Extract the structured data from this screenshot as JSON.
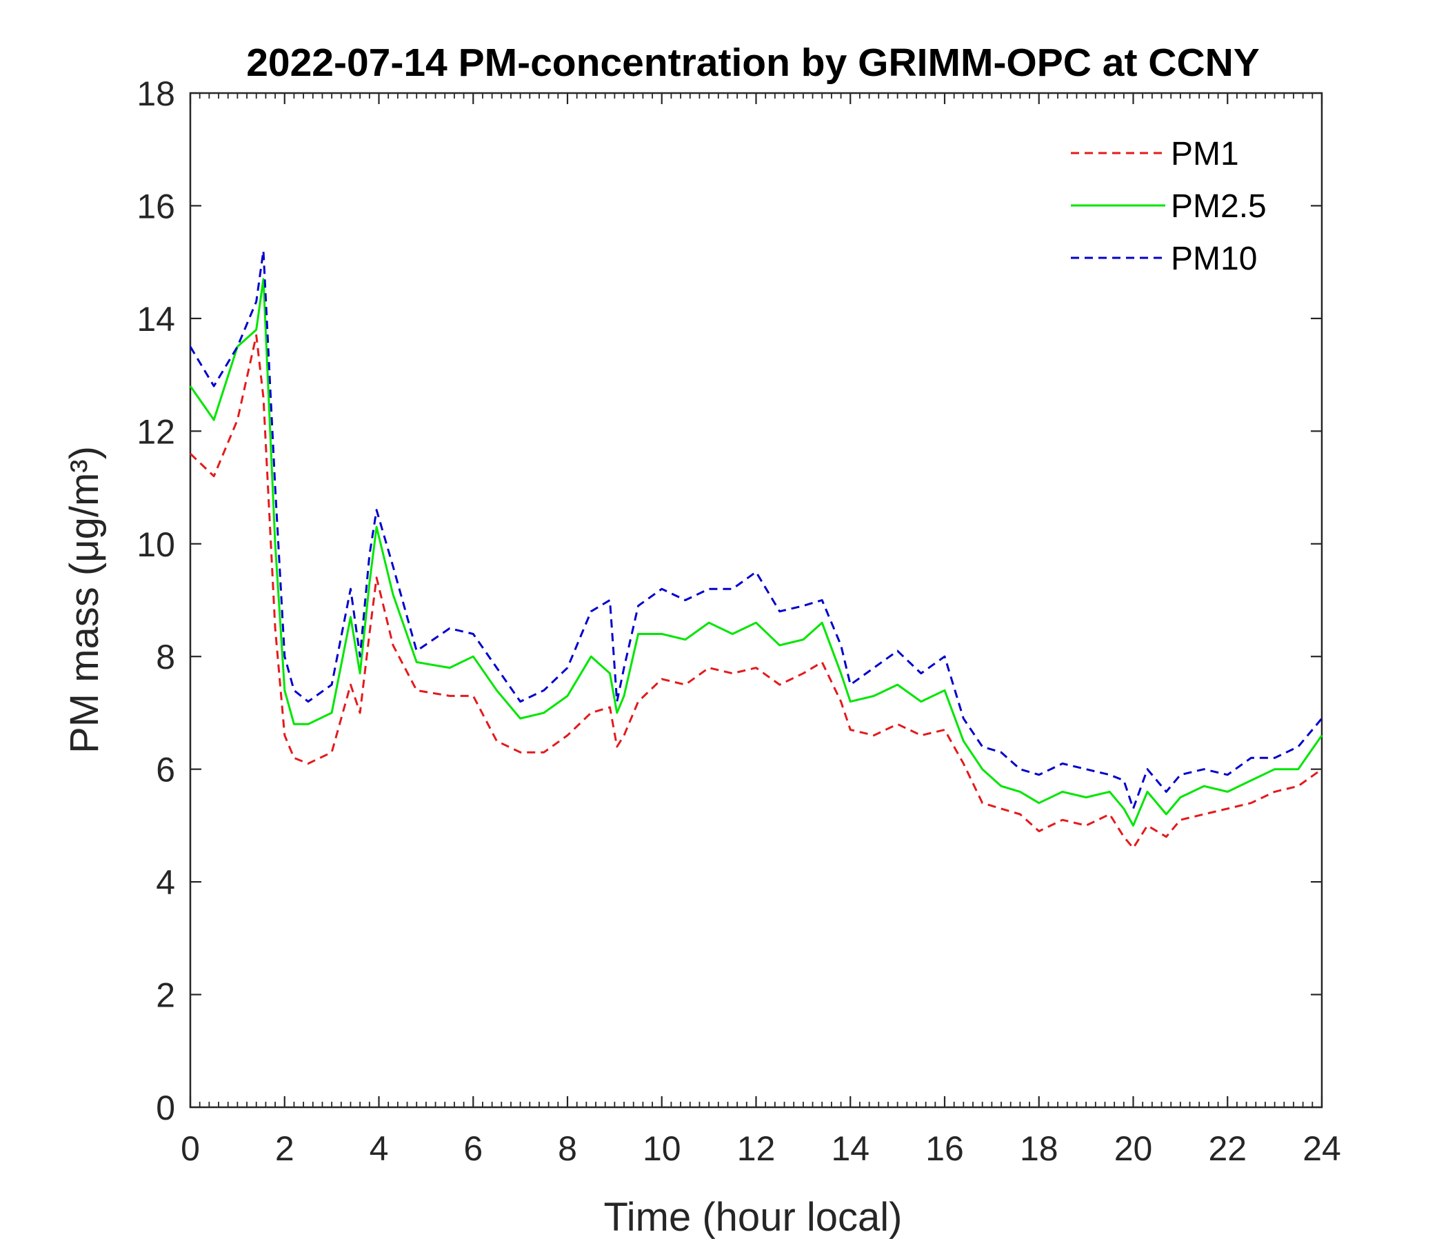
{
  "chart_data": {
    "type": "line",
    "title": "2022-07-14 PM-concentration by GRIMM-OPC at CCNY",
    "xlabel": "Time (hour local)",
    "ylabel": "PM mass (μg/m³)",
    "xlim": [
      0,
      24
    ],
    "ylim": [
      0,
      18
    ],
    "xticks": [
      0,
      2,
      4,
      6,
      8,
      10,
      12,
      14,
      16,
      18,
      20,
      22,
      24
    ],
    "yticks": [
      0,
      2,
      4,
      6,
      8,
      10,
      12,
      14,
      16,
      18
    ],
    "grid": false,
    "legend_position": "top-right",
    "x": [
      0,
      0.5,
      1,
      1.4,
      1.55,
      1.8,
      2.0,
      2.2,
      2.5,
      3.0,
      3.4,
      3.6,
      3.8,
      3.95,
      4.3,
      4.8,
      5.5,
      6.0,
      6.5,
      7.0,
      7.5,
      8.0,
      8.5,
      8.9,
      9.05,
      9.2,
      9.5,
      10.0,
      10.5,
      11.0,
      11.5,
      12.0,
      12.5,
      13.0,
      13.4,
      13.8,
      14.0,
      14.5,
      15.0,
      15.5,
      16.0,
      16.4,
      16.8,
      17.2,
      17.6,
      18.0,
      18.5,
      19.0,
      19.5,
      19.8,
      20.0,
      20.3,
      20.7,
      21.0,
      21.5,
      22.0,
      22.5,
      23.0,
      23.5,
      24.0
    ],
    "series": [
      {
        "name": "PM1",
        "color": "#e31a1c",
        "dash": "dashed",
        "values": [
          11.6,
          11.2,
          12.2,
          13.7,
          12.6,
          8.5,
          6.6,
          6.2,
          6.1,
          6.3,
          7.5,
          7.0,
          8.4,
          9.4,
          8.2,
          7.4,
          7.3,
          7.3,
          6.5,
          6.3,
          6.3,
          6.6,
          7.0,
          7.1,
          6.4,
          6.6,
          7.2,
          7.6,
          7.5,
          7.8,
          7.7,
          7.8,
          7.5,
          7.7,
          7.9,
          7.2,
          6.7,
          6.6,
          6.8,
          6.6,
          6.7,
          6.1,
          5.4,
          5.3,
          5.2,
          4.9,
          5.1,
          5.0,
          5.2,
          4.8,
          4.6,
          5.0,
          4.8,
          5.1,
          5.2,
          5.3,
          5.4,
          5.6,
          5.7,
          6.0
        ]
      },
      {
        "name": "PM2.5",
        "color": "#00e600",
        "dash": "solid",
        "values": [
          12.8,
          12.2,
          13.5,
          13.8,
          14.7,
          10.0,
          7.4,
          6.8,
          6.8,
          7.0,
          8.7,
          7.7,
          9.3,
          10.3,
          9.1,
          7.9,
          7.8,
          8.0,
          7.4,
          6.9,
          7.0,
          7.3,
          8.0,
          7.7,
          7.0,
          7.3,
          8.4,
          8.4,
          8.3,
          8.6,
          8.4,
          8.6,
          8.2,
          8.3,
          8.6,
          7.7,
          7.2,
          7.3,
          7.5,
          7.2,
          7.4,
          6.5,
          6.0,
          5.7,
          5.6,
          5.4,
          5.6,
          5.5,
          5.6,
          5.3,
          5.0,
          5.6,
          5.2,
          5.5,
          5.7,
          5.6,
          5.8,
          6.0,
          6.0,
          6.6
        ]
      },
      {
        "name": "PM10",
        "color": "#0000cc",
        "dash": "dashed",
        "values": [
          13.5,
          12.8,
          13.5,
          14.3,
          15.2,
          11.0,
          8.0,
          7.4,
          7.2,
          7.5,
          9.2,
          8.0,
          9.8,
          10.6,
          9.6,
          8.1,
          8.5,
          8.4,
          7.8,
          7.2,
          7.4,
          7.8,
          8.8,
          9.0,
          7.2,
          7.8,
          8.9,
          9.2,
          9.0,
          9.2,
          9.2,
          9.5,
          8.8,
          8.9,
          9.0,
          8.2,
          7.5,
          7.8,
          8.1,
          7.7,
          8.0,
          6.9,
          6.4,
          6.3,
          6.0,
          5.9,
          6.1,
          6.0,
          5.9,
          5.8,
          5.3,
          6.0,
          5.6,
          5.9,
          6.0,
          5.9,
          6.2,
          6.2,
          6.4,
          6.9
        ]
      }
    ]
  }
}
